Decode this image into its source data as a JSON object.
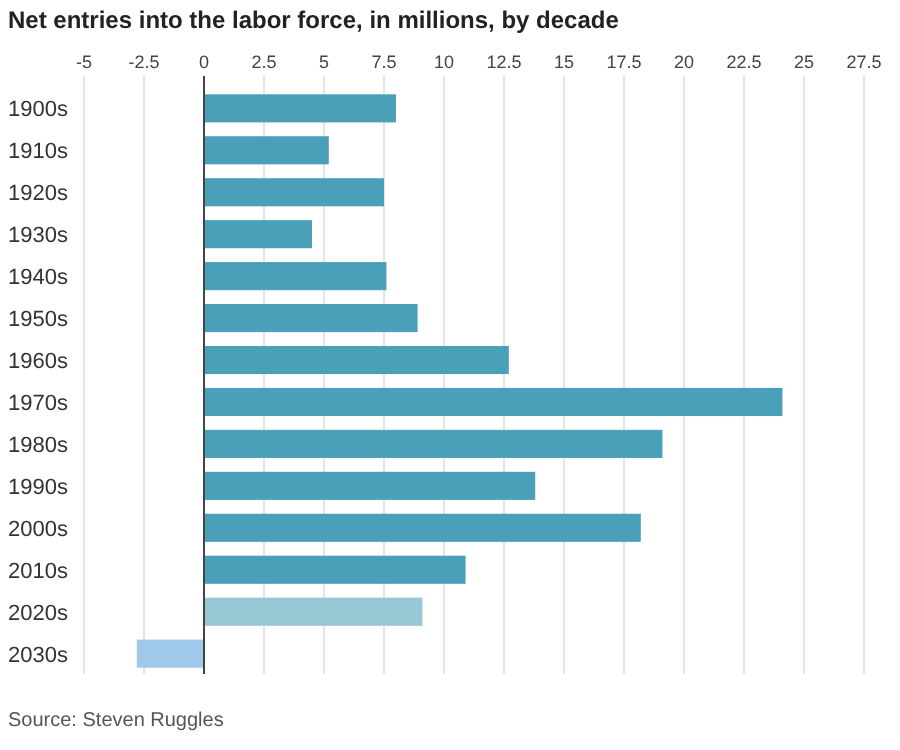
{
  "chart_data": {
    "type": "bar",
    "orientation": "horizontal",
    "title": "Net entries into the labor force, in millions, by decade",
    "categories": [
      "1900s",
      "1910s",
      "1920s",
      "1930s",
      "1940s",
      "1950s",
      "1960s",
      "1970s",
      "1980s",
      "1990s",
      "2000s",
      "2010s",
      "2020s",
      "2030s"
    ],
    "values": [
      8.0,
      5.2,
      7.5,
      4.5,
      7.6,
      8.9,
      12.7,
      24.1,
      19.1,
      13.8,
      18.2,
      10.9,
      9.1,
      -2.8
    ],
    "colors": [
      "#4aa0b8",
      "#4aa0b8",
      "#4aa0b8",
      "#4aa0b8",
      "#4aa0b8",
      "#4aa0b8",
      "#4aa0b8",
      "#4aa0b8",
      "#4aa0b8",
      "#4aa0b8",
      "#4aa0b8",
      "#4aa0b8",
      "#98c8d6",
      "#a0c8ea"
    ],
    "xlim": [
      -5,
      27.5
    ],
    "xticks": [
      -5,
      -2.5,
      0,
      2.5,
      5,
      7.5,
      10,
      12.5,
      15,
      17.5,
      20,
      22.5,
      25,
      27.5
    ],
    "grid": "x",
    "annotations": [
      "Source: Steven Ruggles"
    ]
  }
}
